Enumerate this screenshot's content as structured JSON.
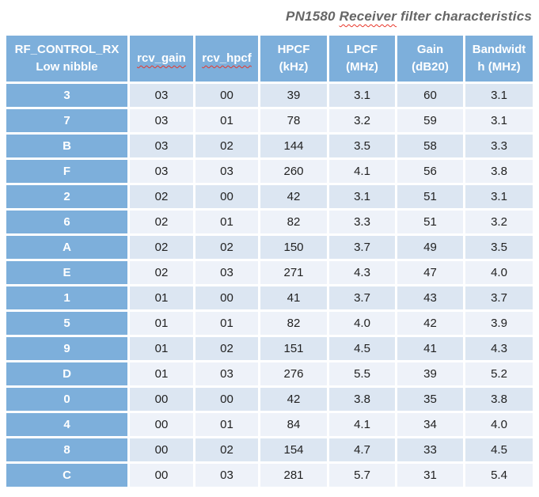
{
  "title": {
    "pre": "PN1580 ",
    "misspelled": "Receiver",
    "post": " filter characteristics"
  },
  "colors": {
    "header_blue": "#7dafdb",
    "band_dark": "#dce6f2",
    "band_light": "#eef2f9",
    "header_text": "#ffffff",
    "body_text": "#222222",
    "title_text": "#666666",
    "squiggle_red": "#e8362a"
  },
  "table": {
    "columns": [
      {
        "key": "rf-control-rx-low-nibble",
        "lines": [
          "RF_CONTROL_RX",
          "Low nibble"
        ],
        "squiggle": false
      },
      {
        "key": "rcv-gain",
        "lines": [
          "rcv_gain"
        ],
        "squiggle": true
      },
      {
        "key": "rcv-hpcf",
        "lines": [
          "rcv_hpcf"
        ],
        "squiggle": true
      },
      {
        "key": "hpcf-khz",
        "lines": [
          "HPCF",
          "(kHz)"
        ],
        "squiggle": false
      },
      {
        "key": "lpcf-mhz",
        "lines": [
          "LPCF",
          "(MHz)"
        ],
        "squiggle": false
      },
      {
        "key": "gain-db20",
        "lines": [
          "Gain",
          "(dB20)"
        ],
        "squiggle": false
      },
      {
        "key": "bandwidth-mhz",
        "lines": [
          "Bandwidt",
          "h (MHz)"
        ],
        "squiggle": false
      }
    ],
    "rows": [
      [
        "3",
        "03",
        "00",
        "39",
        "3.1",
        "60",
        "3.1"
      ],
      [
        "7",
        "03",
        "01",
        "78",
        "3.2",
        "59",
        "3.1"
      ],
      [
        "B",
        "03",
        "02",
        "144",
        "3.5",
        "58",
        "3.3"
      ],
      [
        "F",
        "03",
        "03",
        "260",
        "4.1",
        "56",
        "3.8"
      ],
      [
        "2",
        "02",
        "00",
        "42",
        "3.1",
        "51",
        "3.1"
      ],
      [
        "6",
        "02",
        "01",
        "82",
        "3.3",
        "51",
        "3.2"
      ],
      [
        "A",
        "02",
        "02",
        "150",
        "3.7",
        "49",
        "3.5"
      ],
      [
        "E",
        "02",
        "03",
        "271",
        "4.3",
        "47",
        "4.0"
      ],
      [
        "1",
        "01",
        "00",
        "41",
        "3.7",
        "43",
        "3.7"
      ],
      [
        "5",
        "01",
        "01",
        "82",
        "4.0",
        "42",
        "3.9"
      ],
      [
        "9",
        "01",
        "02",
        "151",
        "4.5",
        "41",
        "4.3"
      ],
      [
        "D",
        "01",
        "03",
        "276",
        "5.5",
        "39",
        "5.2"
      ],
      [
        "0",
        "00",
        "00",
        "42",
        "3.8",
        "35",
        "3.8"
      ],
      [
        "4",
        "00",
        "01",
        "84",
        "4.1",
        "34",
        "4.0"
      ],
      [
        "8",
        "00",
        "02",
        "154",
        "4.7",
        "33",
        "4.5"
      ],
      [
        "C",
        "00",
        "03",
        "281",
        "5.7",
        "31",
        "5.4"
      ]
    ]
  }
}
